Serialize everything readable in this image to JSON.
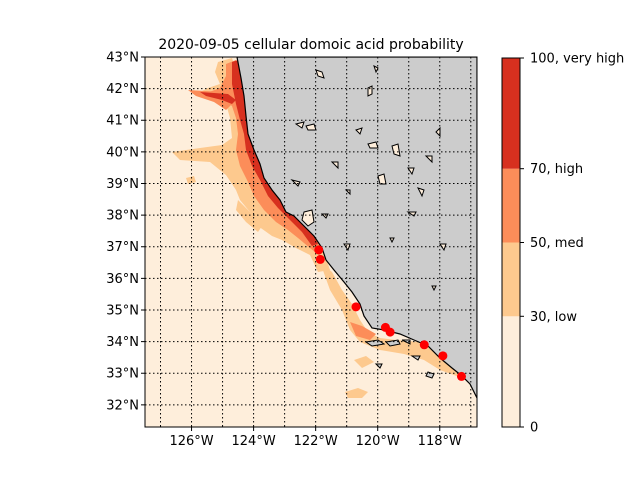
{
  "title": "2020-09-05 cellular domoic acid probability",
  "map": {
    "lon_range": [
      -127.5,
      -116.8
    ],
    "lat_range": [
      31.3,
      43.0
    ],
    "lat_ticks": [
      {
        "value": 43,
        "label": "43°N"
      },
      {
        "value": 42,
        "label": "42°N"
      },
      {
        "value": 41,
        "label": "41°N"
      },
      {
        "value": 40,
        "label": "40°N"
      },
      {
        "value": 39,
        "label": "39°N"
      },
      {
        "value": 38,
        "label": "38°N"
      },
      {
        "value": 37,
        "label": "37°N"
      },
      {
        "value": 36,
        "label": "36°N"
      },
      {
        "value": 35,
        "label": "35°N"
      },
      {
        "value": 34,
        "label": "34°N"
      },
      {
        "value": 33,
        "label": "33°N"
      },
      {
        "value": 32,
        "label": "32°N"
      }
    ],
    "lon_ticks": [
      {
        "value": -126,
        "label": "126°W"
      },
      {
        "value": -124,
        "label": "124°W"
      },
      {
        "value": -122,
        "label": "122°W"
      },
      {
        "value": -120,
        "label": "120°W"
      },
      {
        "value": -118,
        "label": "118°W"
      }
    ],
    "grid_lons": [
      -127,
      -126,
      -125,
      -124,
      -123,
      -122,
      -121,
      -120,
      -119,
      -118,
      -117
    ],
    "grid_lats": [
      32,
      33,
      34,
      35,
      36,
      37,
      38,
      39,
      40,
      41,
      42
    ],
    "grid": true,
    "land_color": "#cccccc",
    "coast_color": "#000000",
    "sites": [
      {
        "lon": -121.9,
        "lat": 36.9
      },
      {
        "lon": -121.85,
        "lat": 36.6
      },
      {
        "lon": -120.7,
        "lat": 35.1
      },
      {
        "lon": -119.75,
        "lat": 34.45
      },
      {
        "lon": -119.6,
        "lat": 34.3
      },
      {
        "lon": -118.5,
        "lat": 33.9
      },
      {
        "lon": -117.9,
        "lat": 33.55
      },
      {
        "lon": -117.3,
        "lat": 32.9
      }
    ],
    "site_color": "#ff0000"
  },
  "colorbar": {
    "ticks": [
      {
        "value": 0,
        "label": "0"
      },
      {
        "value": 30,
        "label": "30, low"
      },
      {
        "value": 50,
        "label": "50, med"
      },
      {
        "value": 70,
        "label": "70, high"
      },
      {
        "value": 100,
        "label": "100, very high"
      }
    ],
    "bands": [
      {
        "from": 0,
        "to": 30,
        "color": "#feeedb"
      },
      {
        "from": 30,
        "to": 50,
        "color": "#fdc98e"
      },
      {
        "from": 50,
        "to": 70,
        "color": "#fc8d59"
      },
      {
        "from": 70,
        "to": 100,
        "color": "#d7301f"
      }
    ]
  }
}
